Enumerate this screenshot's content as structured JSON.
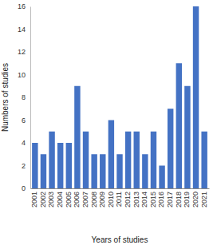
{
  "chart_data": {
    "type": "bar",
    "x_label": "Years of studies",
    "y_label": "Numbers of studies",
    "categories": [
      "2001",
      "2002",
      "2003",
      "2004",
      "2005",
      "2006",
      "2007",
      "2008",
      "2009",
      "2010",
      "2011",
      "2012",
      "2013",
      "2014",
      "2015",
      "2016",
      "2017",
      "2018",
      "2019",
      "2020",
      "2021"
    ],
    "values": [
      4,
      3,
      5,
      4,
      4,
      9,
      5,
      3,
      3,
      6,
      3,
      5,
      5,
      3,
      5,
      2,
      7,
      11,
      9,
      16,
      5
    ],
    "color": "#4472c4",
    "ylim": [
      0,
      16
    ],
    "yticks": [
      0,
      2,
      4,
      6,
      8,
      10,
      12,
      14,
      16
    ],
    "grid": false
  }
}
